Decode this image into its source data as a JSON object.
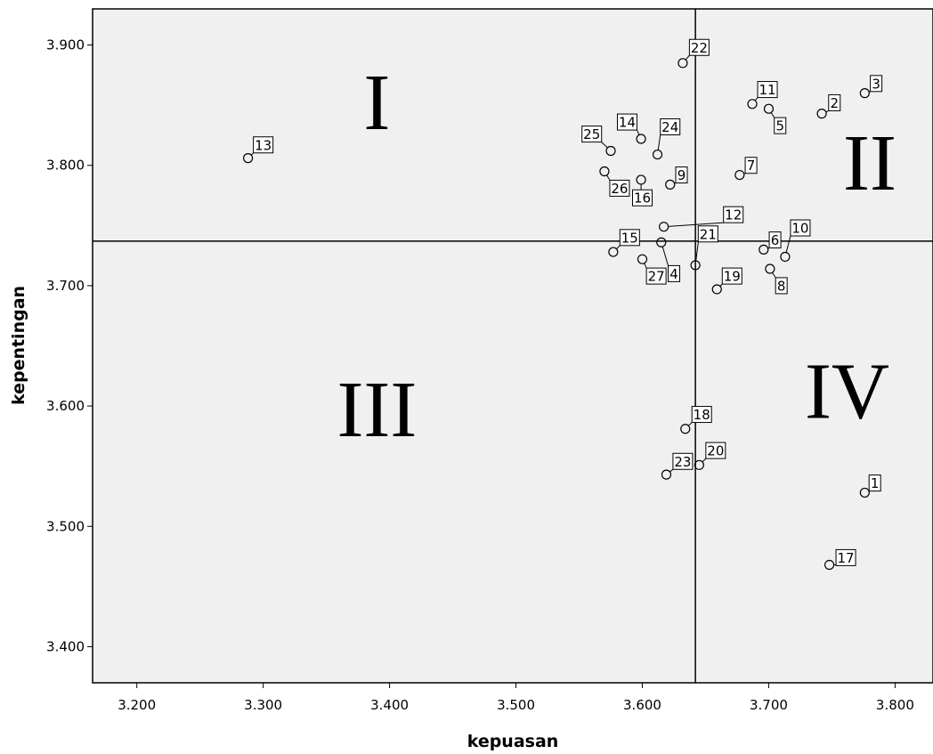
{
  "chart_data": {
    "type": "scatter",
    "xlabel": "kepuasan",
    "ylabel": "kepentingan",
    "xlim": [
      3.165,
      3.83
    ],
    "ylim": [
      3.37,
      3.93
    ],
    "xticks": [
      3.2,
      3.3,
      3.4,
      3.5,
      3.6,
      3.7,
      3.8
    ],
    "xtick_labels": [
      "3.200",
      "3.300",
      "3.400",
      "3.500",
      "3.600",
      "3.700",
      "3.800"
    ],
    "yticks": [
      3.4,
      3.5,
      3.6,
      3.7,
      3.8,
      3.9
    ],
    "ytick_labels": [
      "3.400",
      "3.500",
      "3.600",
      "3.700",
      "3.800",
      "3.900"
    ],
    "reference_lines": {
      "x": 3.642,
      "y": 3.737
    },
    "quadrant_labels": [
      {
        "text": "I",
        "x": 3.39,
        "y": 3.83
      },
      {
        "text": "II",
        "x": 3.78,
        "y": 3.78
      },
      {
        "text": "III",
        "x": 3.39,
        "y": 3.575
      },
      {
        "text": "IV",
        "x": 3.762,
        "y": 3.59
      }
    ],
    "points": [
      {
        "label": "1",
        "x": 3.776,
        "y": 3.528,
        "lx": 3.784,
        "ly": 3.536
      },
      {
        "label": "2",
        "x": 3.742,
        "y": 3.843,
        "lx": 3.752,
        "ly": 3.852
      },
      {
        "label": "3",
        "x": 3.776,
        "y": 3.86,
        "lx": 3.785,
        "ly": 3.868
      },
      {
        "label": "4",
        "x": 3.615,
        "y": 3.736,
        "lx": 3.625,
        "ly": 3.71
      },
      {
        "label": "5",
        "x": 3.7,
        "y": 3.847,
        "lx": 3.709,
        "ly": 3.833
      },
      {
        "label": "6",
        "x": 3.696,
        "y": 3.73,
        "lx": 3.705,
        "ly": 3.738
      },
      {
        "label": "7",
        "x": 3.677,
        "y": 3.792,
        "lx": 3.686,
        "ly": 3.8
      },
      {
        "label": "8",
        "x": 3.701,
        "y": 3.714,
        "lx": 3.71,
        "ly": 3.7
      },
      {
        "label": "9",
        "x": 3.622,
        "y": 3.784,
        "lx": 3.631,
        "ly": 3.792
      },
      {
        "label": "10",
        "x": 3.713,
        "y": 3.724,
        "lx": 3.725,
        "ly": 3.748
      },
      {
        "label": "11",
        "x": 3.687,
        "y": 3.851,
        "lx": 3.699,
        "ly": 3.863
      },
      {
        "label": "12",
        "x": 3.617,
        "y": 3.749,
        "lx": 3.672,
        "ly": 3.759
      },
      {
        "label": "13",
        "x": 3.288,
        "y": 3.806,
        "lx": 3.3,
        "ly": 3.817
      },
      {
        "label": "14",
        "x": 3.599,
        "y": 3.822,
        "lx": 3.588,
        "ly": 3.836
      },
      {
        "label": "15",
        "x": 3.577,
        "y": 3.728,
        "lx": 3.59,
        "ly": 3.74
      },
      {
        "label": "16",
        "x": 3.599,
        "y": 3.788,
        "lx": 3.6,
        "ly": 3.773
      },
      {
        "label": "17",
        "x": 3.748,
        "y": 3.468,
        "lx": 3.761,
        "ly": 3.474
      },
      {
        "label": "18",
        "x": 3.634,
        "y": 3.581,
        "lx": 3.647,
        "ly": 3.593
      },
      {
        "label": "19",
        "x": 3.659,
        "y": 3.697,
        "lx": 3.671,
        "ly": 3.708
      },
      {
        "label": "20",
        "x": 3.645,
        "y": 3.551,
        "lx": 3.658,
        "ly": 3.563
      },
      {
        "label": "21",
        "x": 3.642,
        "y": 3.717,
        "lx": 3.652,
        "ly": 3.743
      },
      {
        "label": "22",
        "x": 3.632,
        "y": 3.885,
        "lx": 3.645,
        "ly": 3.898
      },
      {
        "label": "23",
        "x": 3.619,
        "y": 3.543,
        "lx": 3.632,
        "ly": 3.554
      },
      {
        "label": "24",
        "x": 3.612,
        "y": 3.809,
        "lx": 3.622,
        "ly": 3.832
      },
      {
        "label": "25",
        "x": 3.575,
        "y": 3.812,
        "lx": 3.56,
        "ly": 3.826
      },
      {
        "label": "26",
        "x": 3.57,
        "y": 3.795,
        "lx": 3.582,
        "ly": 3.781
      },
      {
        "label": "27",
        "x": 3.6,
        "y": 3.722,
        "lx": 3.611,
        "ly": 3.708
      }
    ]
  }
}
